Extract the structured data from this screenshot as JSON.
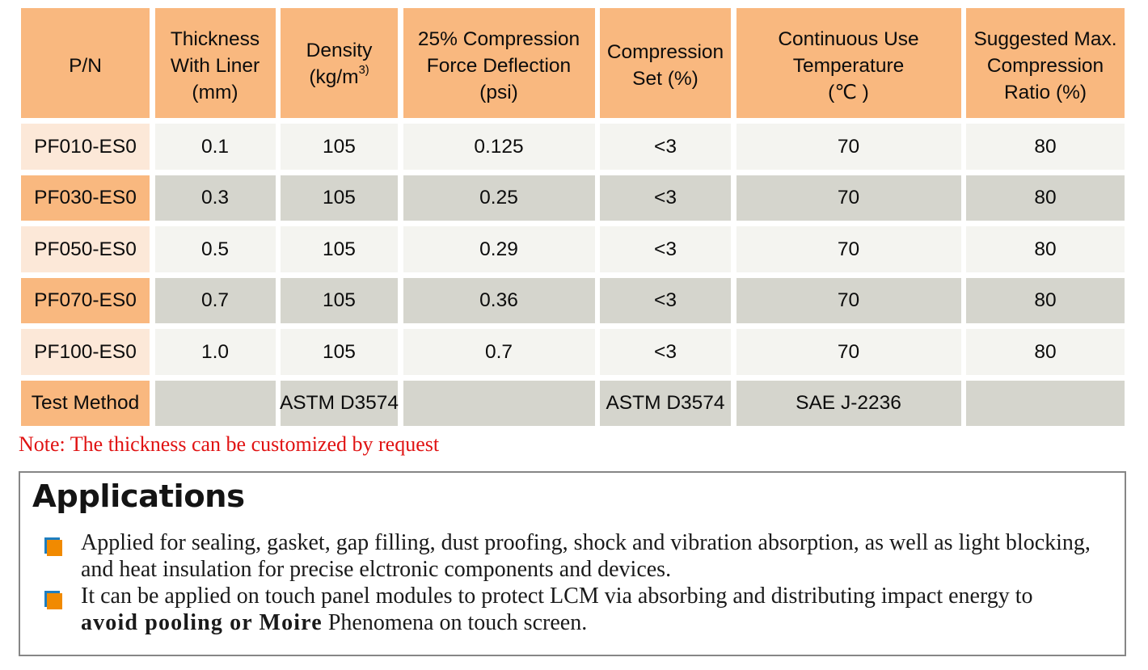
{
  "table": {
    "headers": [
      {
        "lines": [
          [
            {
              "text": "P/N"
            }
          ]
        ]
      },
      {
        "lines": [
          [
            {
              "text": "Thickness"
            }
          ],
          [
            {
              "text": "With Liner"
            }
          ],
          [
            {
              "text": "(mm)"
            }
          ]
        ]
      },
      {
        "lines": [
          [
            {
              "text": "Density"
            }
          ],
          [
            {
              "text": "(kg/m"
            },
            {
              "text": "3)",
              "sup": true
            }
          ]
        ]
      },
      {
        "lines": [
          [
            {
              "text": "25% Compression"
            }
          ],
          [
            {
              "text": "Force Deflection"
            }
          ],
          [
            {
              "text": "(psi)"
            }
          ]
        ]
      },
      {
        "lines": [
          [
            {
              "text": "Compression"
            }
          ],
          [
            {
              "text": "Set (%)"
            }
          ]
        ]
      },
      {
        "lines": [
          [
            {
              "text": "Continuous Use"
            }
          ],
          [
            {
              "text": "Temperature"
            }
          ],
          [
            {
              "text": "(℃ )"
            }
          ]
        ]
      },
      {
        "lines": [
          [
            {
              "text": "Suggested Max."
            }
          ],
          [
            {
              "text": "Compression"
            }
          ],
          [
            {
              "text": "Ratio (%)"
            }
          ]
        ]
      }
    ],
    "rows": [
      [
        "PF010-ES0",
        "0.1",
        "105",
        "0.125",
        "<3",
        "70",
        "80"
      ],
      [
        "PF030-ES0",
        "0.3",
        "105",
        "0.25",
        "<3",
        "70",
        "80"
      ],
      [
        "PF050-ES0",
        "0.5",
        "105",
        "0.29",
        "<3",
        "70",
        "80"
      ],
      [
        "PF070-ES0",
        "0.7",
        "105",
        "0.36",
        "<3",
        "70",
        "80"
      ],
      [
        "PF100-ES0",
        "1.0",
        "105",
        "0.7",
        "<3",
        "70",
        "80"
      ],
      [
        "Test Method",
        "",
        "ASTM D3574",
        "",
        "ASTM D3574",
        "SAE J-2236",
        ""
      ]
    ]
  },
  "note": {
    "text": "Note: The thickness can be customized by request",
    "color": "#e01212"
  },
  "applications": {
    "title": "Applications",
    "items": [
      {
        "lines": [
          [
            {
              "text": "Applied for sealing, gasket, gap filling, dust proofing, shock and vibration absorption, as well as light blocking,"
            }
          ],
          [
            {
              "text": "and heat insulation for precise elctronic components and devices."
            }
          ]
        ]
      },
      {
        "lines": [
          [
            {
              "text": "It can be applied on touch panel modules to protect LCM via absorbing and distributing impact energy to"
            }
          ],
          [
            {
              "text": "avoid pooling or Moire",
              "bold": true
            },
            {
              "text": " Phenomena on touch screen."
            }
          ]
        ]
      }
    ]
  },
  "colors": {
    "header_orange": "#f9b87f",
    "row_peach": "#fce8d8",
    "row_light": "#f4f4f0",
    "row_gray": "#d5d5cd",
    "note_red": "#e01212",
    "bullet_orange": "#f18a00",
    "bullet_blue": "#1e7ec0",
    "box_border": "#868686"
  }
}
